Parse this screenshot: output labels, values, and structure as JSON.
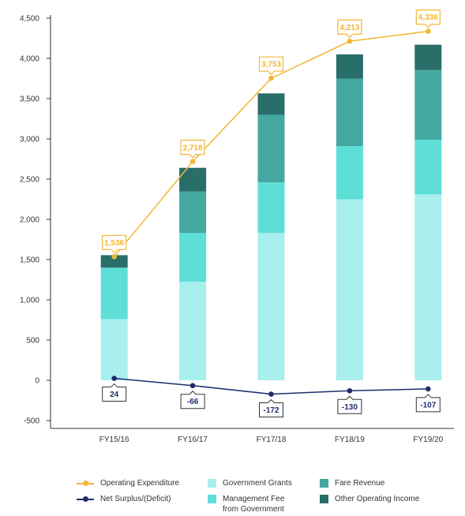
{
  "chart_data": {
    "type": "bar",
    "stacked": true,
    "categories": [
      "FY15/16",
      "FY16/17",
      "FY17/18",
      "FY18/19",
      "FY19/20"
    ],
    "ylim": [
      -500,
      4500
    ],
    "yticks": [
      "4,500",
      "4,000",
      "3,500",
      "3,000",
      "2,500",
      "2,000",
      "1,500",
      "1,000",
      "500",
      "0",
      "-500"
    ],
    "ytick_values": [
      4500,
      4000,
      3500,
      3000,
      2500,
      2000,
      1500,
      1000,
      500,
      0,
      -500
    ],
    "grid": false,
    "legend_position": "bottom",
    "series": [
      {
        "name": "Government Grants",
        "color": "#a8efee",
        "values": [
          760,
          1225,
          1830,
          2250,
          2310
        ]
      },
      {
        "name": "Management Fee\nfrom Government",
        "color": "#5ddfd8",
        "values": [
          640,
          605,
          630,
          660,
          680
        ]
      },
      {
        "name": "Fare Revenue",
        "color": "#44a8a0",
        "values": [
          0,
          515,
          840,
          840,
          865
        ]
      },
      {
        "name": "Other Operating Income",
        "color": "#2a6e6a",
        "values": [
          155,
          295,
          265,
          300,
          315
        ]
      }
    ],
    "lines": [
      {
        "name": "Operating Expenditure",
        "color": "#f2b634",
        "values": [
          1536,
          2718,
          3753,
          4213,
          4336
        ],
        "labels": [
          "1,536",
          "2,718",
          "3,753",
          "4,213",
          "4,336"
        ]
      },
      {
        "name": "Net Surplus/(Deficit)",
        "color": "#1e2d6b",
        "values": [
          24,
          -66,
          -172,
          -130,
          -107
        ],
        "labels": [
          "24",
          "-66",
          "-172",
          "-130",
          "-107"
        ]
      }
    ]
  }
}
